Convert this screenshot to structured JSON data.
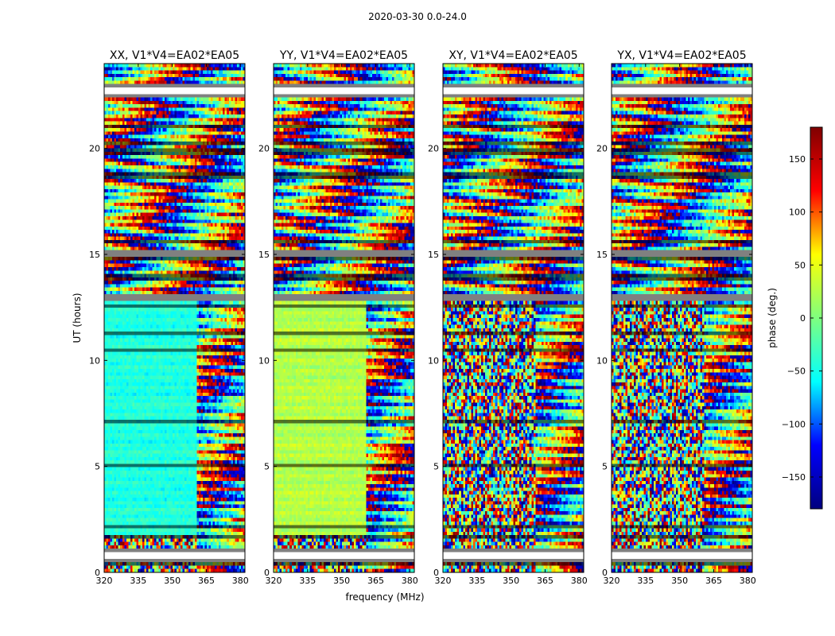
{
  "figure": {
    "suptitle": "2020-03-30 0.0-24.0",
    "xlabel": "frequency (MHz)",
    "ylabel": "UT (hours)"
  },
  "chart_data": [
    {
      "type": "heatmap",
      "title": "XX, V1*V4=EA02*EA05",
      "x": {
        "range": [
          320,
          382
        ],
        "ticks": [
          320,
          335,
          350,
          365,
          380
        ]
      },
      "y": {
        "range": [
          0,
          24
        ],
        "ticks": [
          0,
          5,
          10,
          15,
          20
        ]
      },
      "value_range": [
        -180,
        180
      ],
      "coherent_region": {
        "freq_range": [
          320,
          361
        ],
        "ut_range": [
          1.8,
          13.0
        ],
        "phase_deg": -45
      },
      "blank_ut_bands": [
        [
          0.55,
          1.1
        ],
        [
          22.55,
          23.0
        ],
        [
          12.85,
          13.0
        ],
        [
          14.95,
          15.1
        ]
      ]
    },
    {
      "type": "heatmap",
      "title": "YY, V1*V4=EA02*EA05",
      "x": {
        "range": [
          320,
          382
        ],
        "ticks": [
          320,
          335,
          350,
          365,
          380
        ]
      },
      "y": {
        "range": [
          0,
          24
        ],
        "ticks": [
          0,
          5,
          10,
          15,
          20
        ]
      },
      "value_range": [
        -180,
        180
      ],
      "coherent_region": {
        "freq_range": [
          320,
          361
        ],
        "ut_range": [
          1.8,
          13.0
        ],
        "phase_deg": 25
      },
      "blank_ut_bands": [
        [
          0.55,
          1.1
        ],
        [
          22.55,
          23.0
        ],
        [
          12.85,
          13.0
        ],
        [
          14.95,
          15.1
        ]
      ]
    },
    {
      "type": "heatmap",
      "title": "XY, V1*V4=EA02*EA05",
      "x": {
        "range": [
          320,
          382
        ],
        "ticks": [
          320,
          335,
          350,
          365,
          380
        ]
      },
      "y": {
        "range": [
          0,
          24
        ],
        "ticks": [
          0,
          5,
          10,
          15,
          20
        ]
      },
      "value_range": [
        -180,
        180
      ],
      "coherent_region": null,
      "blank_ut_bands": [
        [
          0.55,
          1.1
        ],
        [
          22.55,
          23.0
        ],
        [
          12.85,
          13.0
        ],
        [
          14.95,
          15.1
        ]
      ]
    },
    {
      "type": "heatmap",
      "title": "YX, V1*V4=EA02*EA05",
      "x": {
        "range": [
          320,
          382
        ],
        "ticks": [
          320,
          335,
          350,
          365,
          380
        ]
      },
      "y": {
        "range": [
          0,
          24
        ],
        "ticks": [
          0,
          5,
          10,
          15,
          20
        ]
      },
      "value_range": [
        -180,
        180
      ],
      "coherent_region": null,
      "blank_ut_bands": [
        [
          0.55,
          1.1
        ],
        [
          22.55,
          23.0
        ],
        [
          12.85,
          13.0
        ],
        [
          14.95,
          15.1
        ]
      ]
    }
  ],
  "colorbar": {
    "label": "phase (deg.)",
    "range": [
      -180,
      180
    ],
    "ticks": [
      150,
      100,
      50,
      0,
      -50,
      -100,
      -150
    ],
    "tick_labels": [
      "150",
      "100",
      "50",
      "0",
      "−50",
      "−100",
      "−150"
    ],
    "colormap": "jet",
    "jet_stops": [
      "#00007f",
      "#0000ff",
      "#00ffff",
      "#7fff7f",
      "#ffff00",
      "#ff0000",
      "#7f0000"
    ]
  }
}
